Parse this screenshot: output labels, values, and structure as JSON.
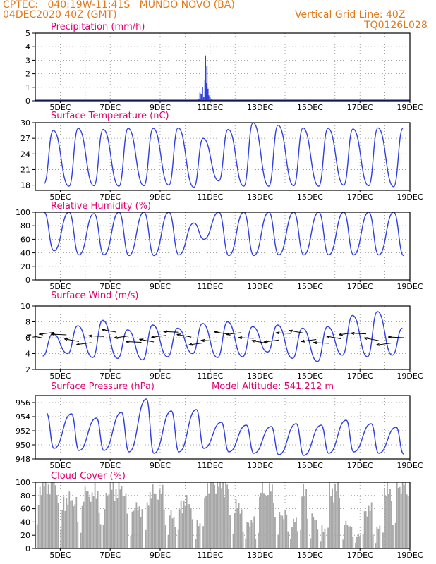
{
  "header": {
    "source_line": "CPTEC:   040:19W-11:41S   MUNDO NOVO (BA)",
    "date_line": "04DEC2020 40Z (GMT)",
    "grid_line": "Vertical Grid Line: 40Z",
    "code": "TQ0126L028"
  },
  "colors": {
    "header": "#e07a1f",
    "title": "#e0006e",
    "series": "#2f3fe0",
    "bars": "#a6a6a6",
    "frame": "#000000",
    "grid": "#8c8c8c"
  },
  "x_axis": {
    "day_range": [
      4,
      19
    ],
    "tick_labels": [
      "5DEC",
      "7DEC",
      "9DEC",
      "11DEC",
      "13DEC",
      "15DEC",
      "17DEC",
      "19DEC"
    ],
    "tick_days": [
      5,
      7,
      9,
      11,
      13,
      15,
      17,
      19
    ],
    "grid": "dotted vertical lines each day"
  },
  "chart_data": [
    {
      "type": "bar",
      "title": "Precipitation (mm/h)",
      "ylim": [
        0,
        5
      ],
      "yticks": [
        0,
        1,
        2,
        3,
        4,
        5
      ],
      "x_unit": "day of December 2020",
      "points": [
        [
          4.15,
          0.08
        ],
        [
          10.55,
          0.15
        ],
        [
          10.6,
          0.6
        ],
        [
          10.65,
          0.5
        ],
        [
          10.7,
          1.0
        ],
        [
          10.75,
          0.3
        ],
        [
          10.8,
          1.5
        ],
        [
          10.82,
          3.35
        ],
        [
          10.85,
          1.3
        ],
        [
          10.88,
          2.6
        ],
        [
          10.92,
          0.9
        ],
        [
          10.95,
          0.4
        ],
        [
          11.0,
          0.3
        ],
        [
          11.05,
          0.1
        ]
      ]
    },
    {
      "type": "line",
      "title": "Surface Temperature (nC)",
      "ylim": [
        17,
        30
      ],
      "yticks": [
        18,
        21,
        24,
        27,
        30
      ],
      "daily_min": [
        18.3,
        17.8,
        17.9,
        17.8,
        17.9,
        18.0,
        17.6,
        18.8,
        17.8,
        17.8,
        17.9,
        17.8,
        18.0,
        17.9,
        17.7,
        18.0
      ],
      "daily_max": [
        28.5,
        28.9,
        28.7,
        28.9,
        28.9,
        29.0,
        27.0,
        28.7,
        30.0,
        29.5,
        29.0,
        28.9,
        28.8,
        29.0,
        28.9,
        29.6
      ]
    },
    {
      "type": "line",
      "title": "Relative Humidity (%)",
      "ylim": [
        0,
        100
      ],
      "yticks": [
        0,
        20,
        40,
        60,
        80,
        100
      ],
      "daily_min": [
        43,
        37,
        37,
        36,
        36,
        37,
        60,
        36,
        36,
        37,
        37,
        37,
        37,
        37,
        36,
        35
      ],
      "daily_max": [
        100,
        100,
        98,
        100,
        100,
        100,
        84,
        100,
        100,
        100,
        100,
        100,
        100,
        100,
        100,
        100
      ]
    },
    {
      "type": "line",
      "title": "Surface Wind (m/s)",
      "ylim": [
        2,
        10
      ],
      "yticks": [
        2,
        4,
        6,
        8,
        10
      ],
      "daily_min": [
        3.7,
        4.0,
        3.5,
        3.4,
        3.2,
        3.6,
        4.0,
        3.5,
        3.6,
        4.2,
        3.4,
        3.0,
        3.8,
        3.6,
        3.8,
        4.5
      ],
      "daily_max": [
        6.5,
        7.5,
        8.2,
        7.0,
        7.6,
        7.2,
        7.8,
        8.0,
        7.4,
        7.6,
        7.2,
        7.4,
        8.8,
        9.3,
        7.2,
        6.0
      ],
      "arrows": "wind direction arrows along the mid-line"
    },
    {
      "type": "line",
      "title": "Surface Pressure (hPa)",
      "annotation": "Model Altitude: 541.212 m",
      "ylim": [
        948,
        957
      ],
      "yticks": [
        948,
        950,
        952,
        954,
        956
      ],
      "daily_min": [
        949.5,
        949.2,
        949.2,
        949.0,
        948.8,
        949.0,
        949.5,
        949.0,
        948.8,
        948.6,
        948.5,
        948.8,
        949.0,
        948.8,
        948.7,
        948.5
      ],
      "daily_max": [
        954.5,
        954.4,
        953.8,
        954.6,
        956.5,
        954.8,
        955.0,
        953.2,
        952.8,
        952.6,
        953.0,
        952.8,
        953.5,
        953.0,
        952.5,
        953.5
      ]
    },
    {
      "type": "bar",
      "title": "Cloud Cover (%)",
      "ylim": [
        0,
        100
      ],
      "yticks": [
        0,
        20,
        40,
        60,
        80,
        100
      ],
      "blocks": [
        [
          4.05,
          4.95,
          96
        ],
        [
          5.0,
          5.7,
          72
        ],
        [
          5.8,
          6.6,
          82
        ],
        [
          6.7,
          7.7,
          88
        ],
        [
          7.8,
          8.3,
          60
        ],
        [
          8.4,
          9.2,
          82
        ],
        [
          9.3,
          9.6,
          50
        ],
        [
          9.7,
          10.3,
          68
        ],
        [
          10.4,
          10.6,
          40
        ],
        [
          10.7,
          11.8,
          98
        ],
        [
          11.9,
          12.3,
          62
        ],
        [
          12.4,
          12.8,
          40
        ],
        [
          12.9,
          13.6,
          86
        ],
        [
          13.7,
          14.1,
          52
        ],
        [
          14.2,
          14.5,
          40
        ],
        [
          14.6,
          14.9,
          82
        ],
        [
          15.0,
          15.3,
          46
        ],
        [
          15.4,
          15.6,
          30
        ],
        [
          15.7,
          16.2,
          88
        ],
        [
          16.3,
          16.7,
          36
        ],
        [
          16.8,
          17.0,
          22
        ],
        [
          17.1,
          17.5,
          58
        ],
        [
          17.6,
          17.8,
          30
        ],
        [
          17.9,
          18.3,
          86
        ],
        [
          18.4,
          18.95,
          97
        ]
      ]
    }
  ],
  "panels": [
    {
      "title": "Precipitation (mm/h)"
    },
    {
      "title": "Surface Temperature (nC)"
    },
    {
      "title": "Relative Humidity (%)"
    },
    {
      "title": "Surface Wind (m/s)"
    },
    {
      "title": "Surface Pressure (hPa)",
      "annotation": "Model Altitude: 541.212 m"
    },
    {
      "title": "Cloud Cover (%)"
    }
  ]
}
